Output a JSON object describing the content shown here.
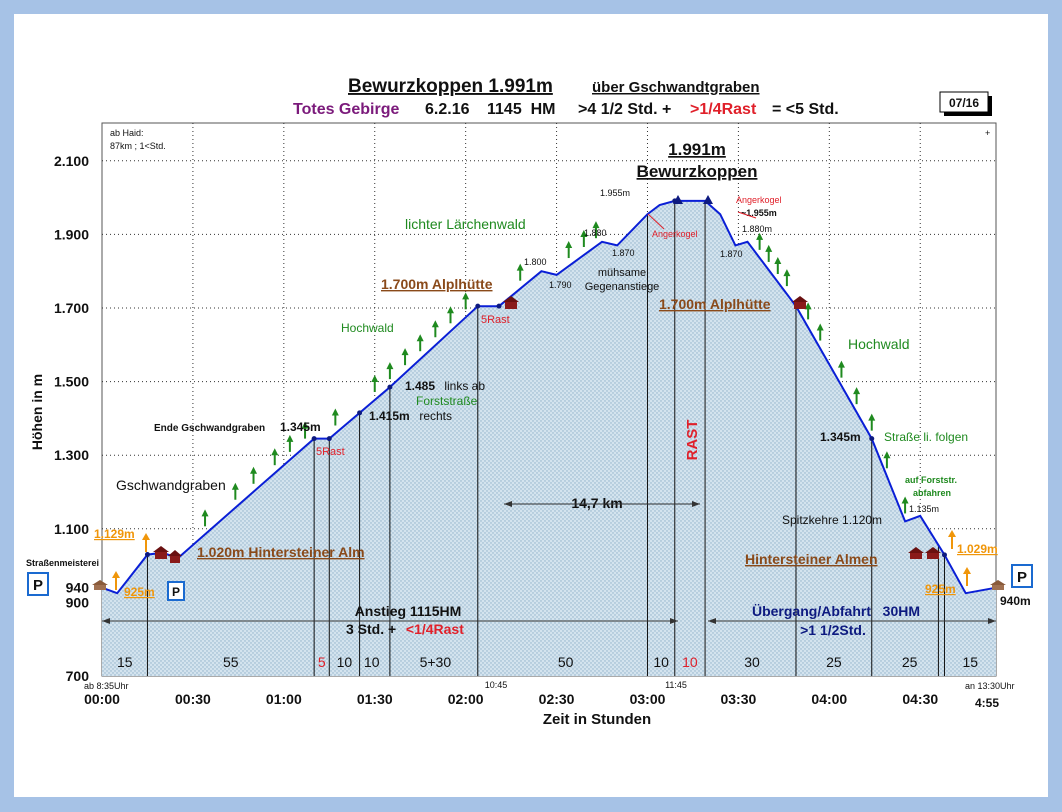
{
  "header": {
    "title_main": "Bewurzkoppen 1.991m",
    "title_sub": "über Gschwandtgraben",
    "line2": {
      "region": "Totes Gebirge",
      "date": "6.2.16",
      "hm": "1145  HM",
      "time_a": ">4 1/2 Std. +",
      "rast": ">1/4Rast",
      "total": "= <5 Std."
    },
    "page_badge": "07/16"
  },
  "colors": {
    "profile_line": "#0a1fd6",
    "fill": "#ccdde8",
    "accent_red": "#e0202a",
    "accent_green": "#1f8a1f",
    "accent_brown": "#8a4a1a",
    "accent_purple": "#7b1a7b",
    "accent_orange": "#f0960a",
    "navy": "#0d1a80",
    "background": "#a6c2e6"
  },
  "chart_data": {
    "type": "area",
    "title": "Bewurzkoppen 1.991m über Gschwandtgraben",
    "xlabel": "Zeit in Stunden",
    "ylabel": "Höhen in m",
    "xlim": [
      0,
      295
    ],
    "ylim": [
      700,
      2200
    ],
    "grid": true,
    "x_ticks": [
      {
        "t": 0,
        "label": "00:00"
      },
      {
        "t": 30,
        "label": "00:30"
      },
      {
        "t": 60,
        "label": "01:00"
      },
      {
        "t": 90,
        "label": "01:30"
      },
      {
        "t": 120,
        "label": "02:00"
      },
      {
        "t": 150,
        "label": "02:30"
      },
      {
        "t": 180,
        "label": "03:00"
      },
      {
        "t": 210,
        "label": "03:30"
      },
      {
        "t": 240,
        "label": "04:00"
      },
      {
        "t": 270,
        "label": "04:30"
      }
    ],
    "y_ticks": [
      {
        "v": 700,
        "label": "700"
      },
      {
        "v": 900,
        "label": "900"
      },
      {
        "v": 940,
        "label": "940"
      },
      {
        "v": 1100,
        "label": "1.100"
      },
      {
        "v": 1300,
        "label": "1.300"
      },
      {
        "v": 1500,
        "label": "1.500"
      },
      {
        "v": 1700,
        "label": "1.700"
      },
      {
        "v": 1900,
        "label": "1.900"
      },
      {
        "v": 2100,
        "label": "2.100"
      }
    ],
    "profile": [
      [
        0,
        940
      ],
      [
        5,
        925
      ],
      [
        15,
        1030
      ],
      [
        20,
        1035
      ],
      [
        25,
        1020
      ],
      [
        70,
        1345
      ],
      [
        75,
        1345
      ],
      [
        85,
        1415
      ],
      [
        95,
        1485
      ],
      [
        124,
        1705
      ],
      [
        131,
        1705
      ],
      [
        145,
        1800
      ],
      [
        150,
        1790
      ],
      [
        165,
        1880
      ],
      [
        170,
        1870
      ],
      [
        180,
        1955
      ],
      [
        184,
        1980
      ],
      [
        189,
        1991
      ],
      [
        199,
        1991
      ],
      [
        204,
        1955
      ],
      [
        209,
        1870
      ],
      [
        213,
        1880
      ],
      [
        229,
        1705
      ],
      [
        254,
        1345
      ],
      [
        265,
        1120
      ],
      [
        270,
        1135
      ],
      [
        278,
        1029
      ],
      [
        285,
        925
      ],
      [
        295,
        940
      ]
    ],
    "segments": [
      {
        "t": 7.5,
        "label": "15"
      },
      {
        "t": 42.5,
        "label": "55"
      },
      {
        "t": 72.5,
        "label": "5"
      },
      {
        "t": 80,
        "label": "10"
      },
      {
        "t": 89,
        "label": "10"
      },
      {
        "t": 110,
        "label": "5+30"
      },
      {
        "t": 153,
        "label": "50"
      },
      {
        "t": 184.5,
        "label": "10"
      },
      {
        "t": 194,
        "label": "10"
      },
      {
        "t": 214.5,
        "label": "30"
      },
      {
        "t": 241.5,
        "label": "25"
      },
      {
        "t": 266.5,
        "label": "25"
      },
      {
        "t": 286.5,
        "label": "15"
      }
    ],
    "clock_labels": {
      "start": "ab 8:35Uhr",
      "t130": "10:45",
      "t190": "11:45",
      "end": "an 13:30Uhr",
      "total": "4:55"
    },
    "annotations": {
      "ab_haid": "ab Haid:",
      "ab_haid_km": "87km ; 1<Std.",
      "plus": "+",
      "summit_h": "1.991m",
      "summit_name": "Bewurzkoppen",
      "elev_1955": "1.955m",
      "elev_1880a": "1.880",
      "elev_1870a": "1.870",
      "elev_1800": "1.800",
      "elev_1790": "1.790",
      "elev_1870b": "1.870",
      "angerkogel": "Angerkogel",
      "angerkogel_r1": "Angerkogel",
      "angerkogel_r2": "~1.955m",
      "elev_1880b": "1.880m",
      "lichter": "lichter Lärchenwald",
      "muehsame1": "mühsame",
      "muehsame2": "Gegenanstiege",
      "alphuette": "1.700m Alplhütte",
      "rast5a": "5Rast",
      "rast5b": "5Rast",
      "hochwald_l": "Hochwald",
      "hochwald_r": "Hochwald",
      "e1485": "1.485",
      "links_ab": " links ab",
      "forststrasse": "Forststraße",
      "e1415": "1.415m",
      "rechts": " rechts",
      "ende_gg": "Ende Gschwandgraben",
      "e1345": "1.345m",
      "gschwandgraben": "Gschwandgraben",
      "e1129": "1.129m",
      "e925l": "925m",
      "hinterst_alm": "1.020m Hintersteiner Alm",
      "strassenmeisterei": "Straßenmeisterei",
      "parking": "P",
      "rast_v": "RAST",
      "dist": "14,7 km",
      "e1345r": "1.345m",
      "strasse_li": "Straße li. folgen",
      "auf_forst1": "auf Forststr.",
      "auf_forst2": "abfahren",
      "e1135": "1.135m",
      "spitzkehre": "Spitzkehre 1.120m",
      "hinterst_almen": "Hintersteiner Almen",
      "e1029": "1.029m",
      "e925r": "925m",
      "e940": "940m",
      "anstieg": "Anstieg 1115HM",
      "anstieg2a": "3 Std. +",
      "anstieg2b": " <1/4Rast",
      "uebergang": "Übergang/Abfahrt   30HM",
      "uebergang2": ">1 1/2Std."
    }
  }
}
